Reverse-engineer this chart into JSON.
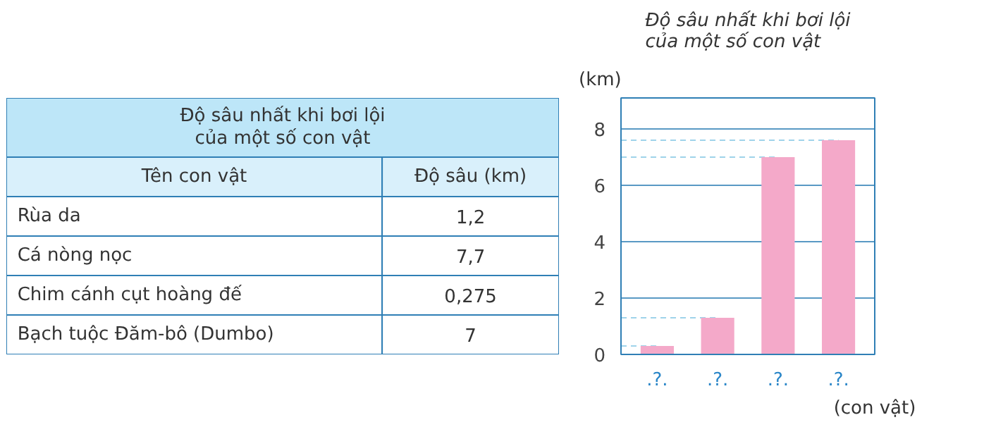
{
  "chart_data": [
    {
      "type": "other",
      "title": "Độ sâu nhất khi bơi lội\ncủa một số con vật",
      "annotations": [
        "Tên con vật",
        "Độ sâu (km)",
        "Rùa da",
        "1,2",
        "Cá nòng nọc",
        "7,7",
        "Chim cánh cụt hoàng đế",
        "0,275",
        "Bạch tuộc Đăm-bô (Dumbo)",
        "7"
      ]
    },
    {
      "type": "bar",
      "title": "Độ sâu nhất khi bơi lội\ncủa một số con vật",
      "ylabel": "(km)",
      "xlabel": "(con vật)",
      "categories": [
        ".?.",
        ".?.",
        ".?.",
        ".?."
      ],
      "values": [
        0.3,
        1.3,
        7,
        7.6
      ],
      "color": "#f4a9c9",
      "ylim": [
        0,
        9.1
      ],
      "yticks": [
        0,
        2,
        4,
        6,
        8
      ],
      "grid": "y",
      "ref_lines": [
        {
          "axis": "y",
          "value": 0.3,
          "line_style": "dashed"
        },
        {
          "axis": "y",
          "value": 1.3,
          "line_style": "dashed"
        },
        {
          "axis": "y",
          "value": 7,
          "line_style": "dashed"
        },
        {
          "axis": "y",
          "value": 7.6,
          "line_style": "dashed"
        }
      ]
    }
  ]
}
